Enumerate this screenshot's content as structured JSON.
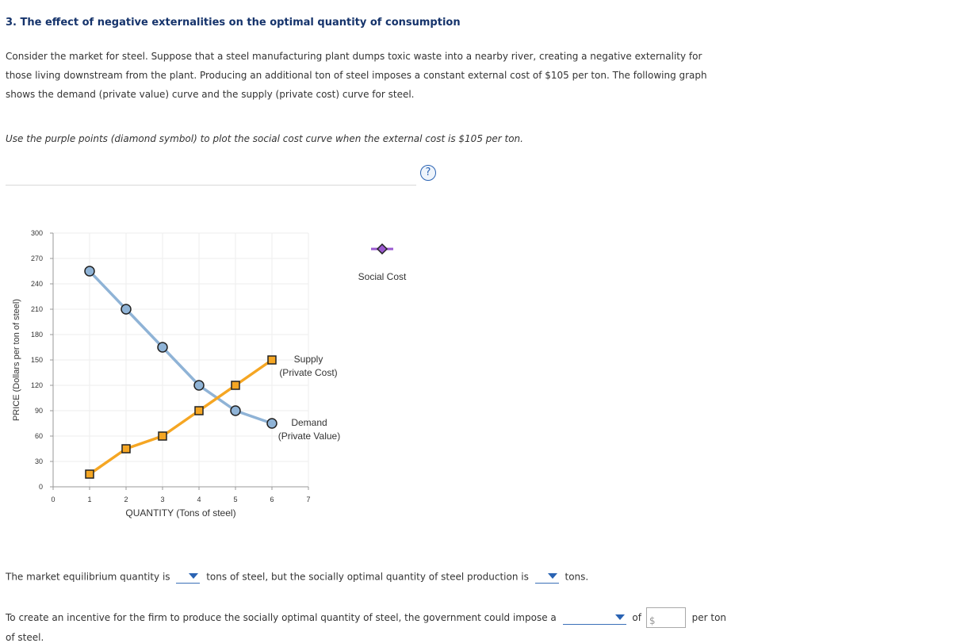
{
  "question": {
    "title": "3. The effect of negative externalities on the optimal quantity of consumption",
    "intro": "Consider the market for steel. Suppose that a steel manufacturing plant dumps toxic waste into a nearby river, creating a negative externality for those living downstream from the plant. Producing an additional ton of steel imposes a constant external cost of $105 per ton. The following graph shows the demand (private value) curve and the supply (private cost) curve for steel.",
    "instruction": "Use the purple points (diamond symbol) to plot the social cost curve when the external cost is $105 per ton.",
    "help_icon": "?"
  },
  "chart_data": {
    "type": "line",
    "xlabel": "QUANTITY (Tons of steel)",
    "ylabel": "PRICE (Dollars per ton of steel)",
    "xlim": [
      0,
      7
    ],
    "ylim": [
      0,
      300
    ],
    "xticks": [
      "0",
      "1",
      "2",
      "3",
      "4",
      "5",
      "6",
      "7"
    ],
    "yticks": [
      "0",
      "30",
      "60",
      "90",
      "120",
      "150",
      "180",
      "210",
      "240",
      "270",
      "300"
    ],
    "grid": true,
    "series": [
      {
        "name_lines": [
          "Demand",
          "(Private Value)"
        ],
        "color": "#8fb3d6",
        "marker": "circle",
        "x": [
          1,
          2,
          3,
          4,
          5,
          6
        ],
        "y": [
          255,
          210,
          165,
          120,
          90,
          75
        ]
      },
      {
        "name_lines": [
          "Supply",
          "(Private Cost)"
        ],
        "color": "#f5a623",
        "marker": "square",
        "x": [
          1,
          2,
          3,
          4,
          5,
          6
        ],
        "y": [
          15,
          45,
          60,
          90,
          120,
          150
        ]
      }
    ],
    "palette": {
      "label": "Social Cost",
      "marker": "diamond",
      "color": "#9b59d0"
    }
  },
  "answers": {
    "equilibrium_prefix": "The market equilibrium quantity is",
    "equilibrium_middle": "tons of steel, but the socially optimal quantity of steel production is",
    "equilibrium_suffix": "tons.",
    "tax_prefix": "To create an incentive for the firm to produce the socially optimal quantity of steel, the government could impose a",
    "tax_of": "of",
    "dollar_sign": "$",
    "tax_suffix": "per ton",
    "tail": "of steel."
  }
}
